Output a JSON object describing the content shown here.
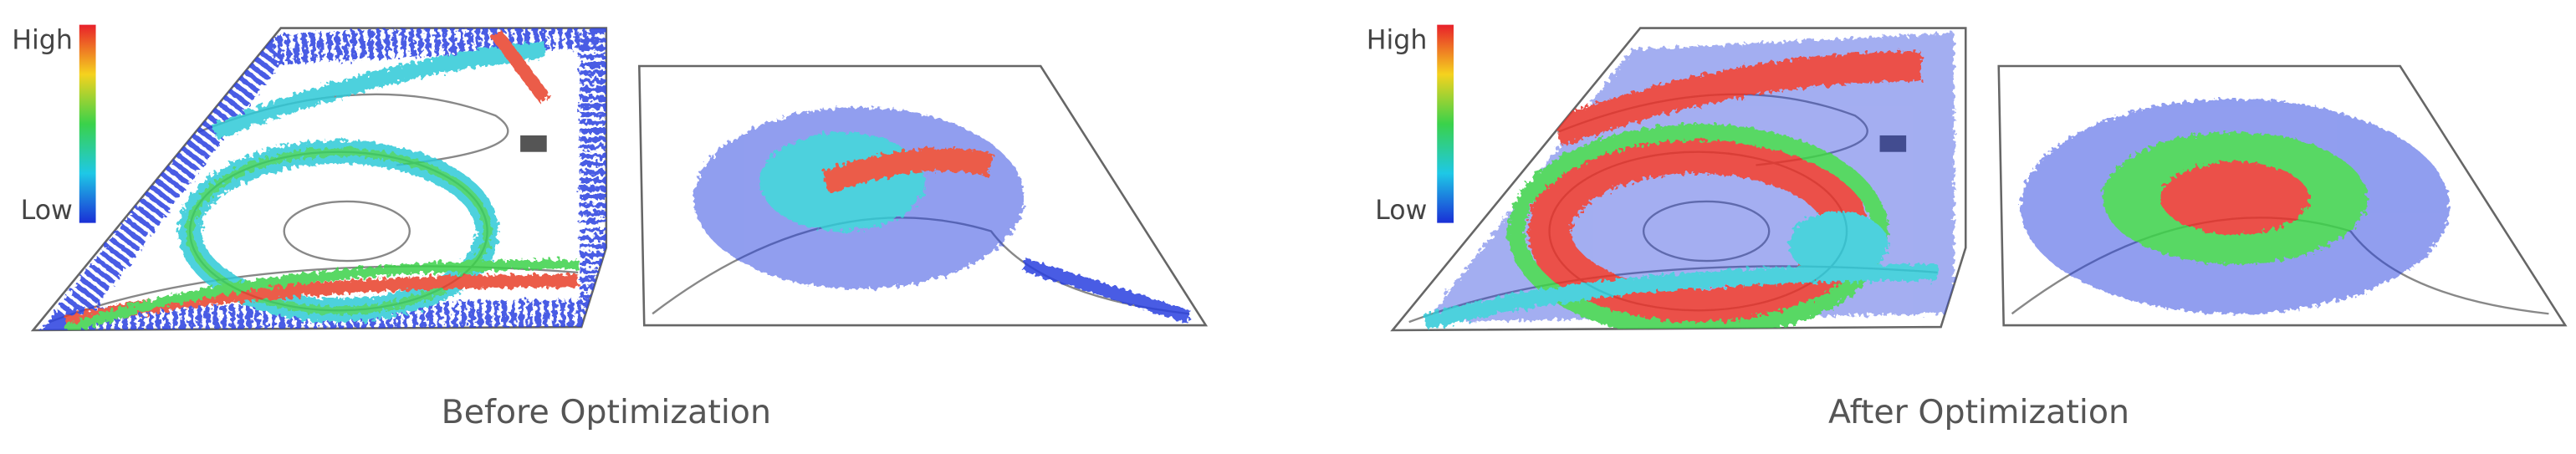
{
  "panels": [
    {
      "caption": "Before Optimization",
      "legend_high": "High",
      "legend_low": "Low"
    },
    {
      "caption": "After Optimization",
      "legend_high": "High",
      "legend_low": "Low"
    }
  ]
}
